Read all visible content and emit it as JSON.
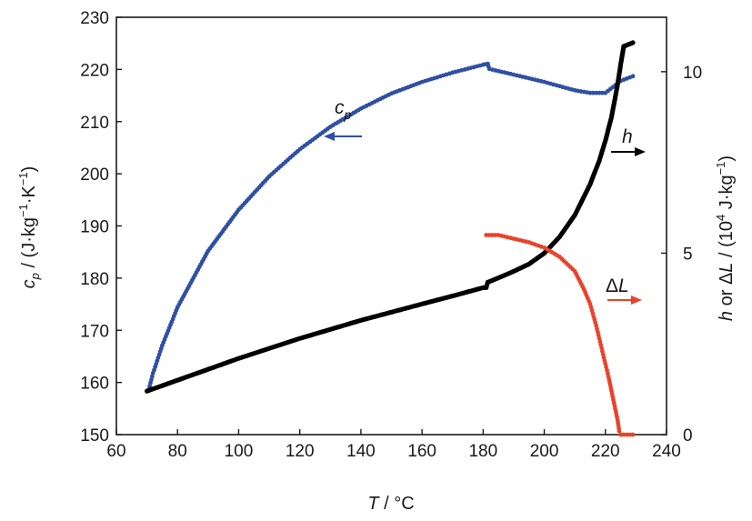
{
  "chart_data": {
    "type": "scatter",
    "x_axis": {
      "label_italic": "T",
      "label_rest": " / °C",
      "range": [
        60,
        240
      ],
      "ticks": [
        60,
        80,
        100,
        120,
        140,
        160,
        180,
        200,
        220,
        240
      ],
      "tick_labels": [
        "60",
        "80",
        "100",
        "120",
        "140",
        "160",
        "180",
        "200",
        "220",
        "240"
      ]
    },
    "y_left": {
      "label_symbol": "c",
      "label_sub": "p",
      "label_rest": " / (J·kg",
      "label_sup1": "−1",
      "label_mid": "·K",
      "label_sup2": "−1",
      "label_end": ")",
      "range": [
        150,
        230
      ],
      "ticks": [
        150,
        160,
        170,
        180,
        190,
        200,
        210,
        220,
        230
      ],
      "tick_labels": [
        "150",
        "160",
        "170",
        "180",
        "190",
        "200",
        "210",
        "220",
        "230"
      ]
    },
    "y_right": {
      "label_h": "h",
      "label_or": " or Δ",
      "label_L": "L",
      "label_unit1": " / (10",
      "label_sup1": "4",
      "label_unit2": " J·kg",
      "label_sup2": "−1",
      "label_end": ")",
      "range": [
        0,
        11.5
      ],
      "ticks": [
        0,
        5,
        10
      ],
      "tick_labels": [
        "0",
        "5",
        "10"
      ]
    },
    "annotations": {
      "cp_symbol": "c",
      "cp_sub": "p",
      "h_label": "h",
      "dl_delta": "Δ",
      "dl_L": "L"
    },
    "series": [
      {
        "key": "cp",
        "axis": "left",
        "color": "#2e4fa3",
        "points": [
          [
            70.6,
            158.7
          ],
          [
            72,
            161.8
          ],
          [
            75,
            167.1
          ],
          [
            80,
            174.4
          ],
          [
            90,
            185.2
          ],
          [
            100,
            193.1
          ],
          [
            110,
            199.5
          ],
          [
            120,
            204.7
          ],
          [
            130,
            209.0
          ],
          [
            140,
            212.5
          ],
          [
            150,
            215.4
          ],
          [
            160,
            217.6
          ],
          [
            170,
            219.4
          ],
          [
            180,
            220.9
          ],
          [
            181.5,
            221.1
          ],
          [
            182,
            220.1
          ],
          [
            190,
            219.0
          ],
          [
            200,
            217.6
          ],
          [
            210,
            216.0
          ],
          [
            215,
            215.5
          ],
          [
            220,
            215.5
          ],
          [
            225,
            217.8
          ],
          [
            229,
            218.7
          ]
        ]
      },
      {
        "key": "h",
        "axis": "right",
        "color": "#000000",
        "points": [
          [
            70,
            1.2
          ],
          [
            80,
            1.5
          ],
          [
            100,
            2.1
          ],
          [
            120,
            2.65
          ],
          [
            140,
            3.15
          ],
          [
            160,
            3.6
          ],
          [
            170,
            3.82
          ],
          [
            180,
            4.05
          ],
          [
            181,
            4.05
          ],
          [
            181.5,
            4.2
          ],
          [
            185,
            4.32
          ],
          [
            190,
            4.5
          ],
          [
            195,
            4.7
          ],
          [
            200,
            5.0
          ],
          [
            205,
            5.45
          ],
          [
            210,
            6.05
          ],
          [
            215,
            6.9
          ],
          [
            218,
            7.55
          ],
          [
            220,
            8.1
          ],
          [
            222,
            8.75
          ],
          [
            223,
            9.2
          ],
          [
            224,
            9.65
          ],
          [
            225,
            10.2
          ],
          [
            226,
            10.7
          ],
          [
            229,
            10.8
          ]
        ]
      },
      {
        "key": "dL",
        "axis": "right",
        "color": "#e8432a",
        "points": [
          [
            181,
            5.5
          ],
          [
            185,
            5.5
          ],
          [
            190,
            5.4
          ],
          [
            195,
            5.3
          ],
          [
            200,
            5.15
          ],
          [
            205,
            4.9
          ],
          [
            210,
            4.5
          ],
          [
            213,
            4.0
          ],
          [
            215,
            3.6
          ],
          [
            217,
            3.0
          ],
          [
            219,
            2.3
          ],
          [
            221,
            1.6
          ],
          [
            222,
            1.2
          ],
          [
            223,
            0.8
          ],
          [
            224,
            0.4
          ],
          [
            224.5,
            0.1
          ],
          [
            225,
            0
          ],
          [
            229,
            0
          ]
        ]
      }
    ]
  }
}
